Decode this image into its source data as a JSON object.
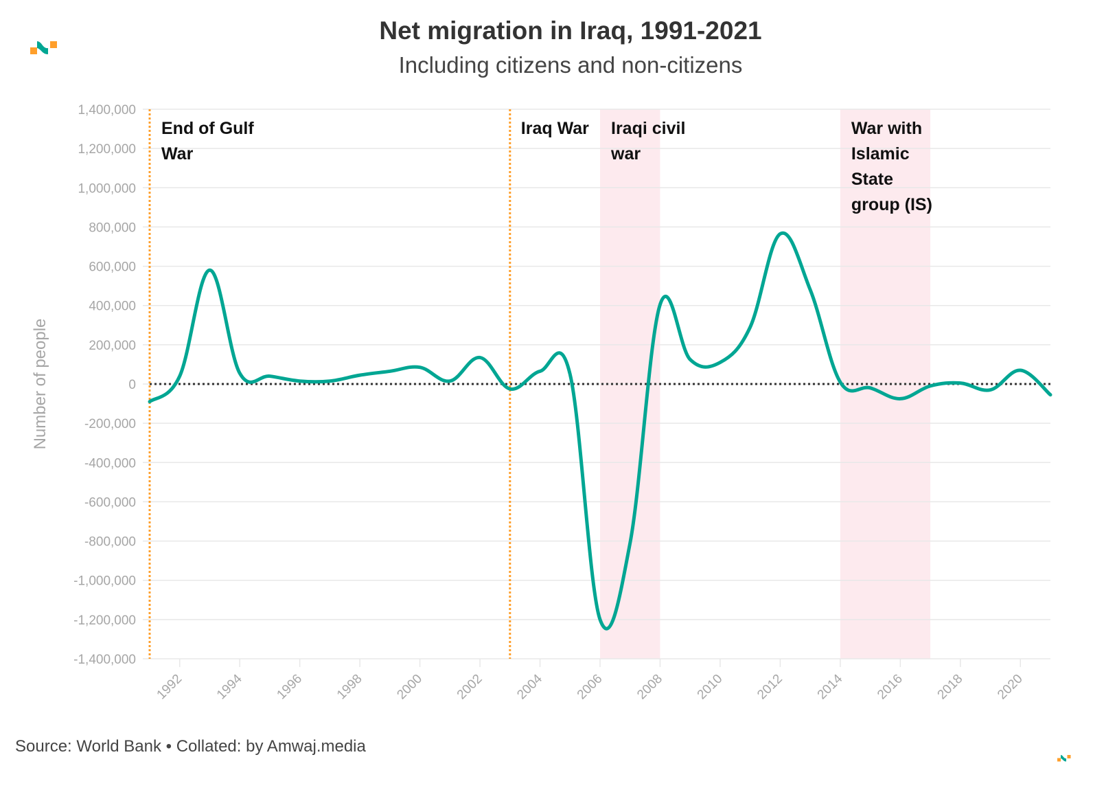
{
  "header": {
    "title": "Net migration in Iraq, 1991-2021",
    "subtitle": "Including citizens and non-citizens"
  },
  "footer": {
    "source": "Source: World Bank • Collated: by Amwaj.media"
  },
  "logo": {
    "name": "amwaj-logo-icon",
    "colors": {
      "teal": "#00a693",
      "orange": "#ff9f2b"
    }
  },
  "colors": {
    "line": "#00a693",
    "event_line": "#ff9f2b",
    "shade": "#fdeaee",
    "zero_line": "#333333",
    "grid": "#e8e8e8"
  },
  "chart_data": {
    "type": "line",
    "title": "Net migration in Iraq, 1991-2021",
    "subtitle": "Including citizens and non-citizens",
    "xlabel": "",
    "ylabel": "Number of people",
    "xlim": [
      1991,
      2021
    ],
    "ylim": [
      -1400000,
      1400000
    ],
    "grid": true,
    "x_ticks": [
      1992,
      1994,
      1996,
      1998,
      2000,
      2002,
      2004,
      2006,
      2008,
      2010,
      2012,
      2014,
      2016,
      2018,
      2020
    ],
    "y_ticks": [
      1400000,
      1200000,
      1000000,
      800000,
      600000,
      400000,
      200000,
      0,
      -200000,
      -400000,
      -600000,
      -800000,
      -1000000,
      -1200000,
      -1400000
    ],
    "y_tick_labels": [
      "1,400,000",
      "1,200,000",
      "1,000,000",
      "800,000",
      "600,000",
      "400,000",
      "200,000",
      "0",
      "-200,000",
      "-400,000",
      "-600,000",
      "-800,000",
      "-1,000,000",
      "-1,200,000",
      "-1,400,000"
    ],
    "x": [
      1991,
      1992,
      1993,
      1994,
      1995,
      1996,
      1997,
      1998,
      1999,
      2000,
      2001,
      2002,
      2003,
      2004,
      2005,
      2006,
      2007,
      2008,
      2009,
      2010,
      2011,
      2012,
      2013,
      2014,
      2015,
      2016,
      2017,
      2018,
      2019,
      2020,
      2021
    ],
    "series": [
      {
        "name": "Net migration",
        "values": [
          -90000,
          40000,
          580000,
          55000,
          40000,
          15000,
          15000,
          45000,
          65000,
          85000,
          15000,
          135000,
          -25000,
          65000,
          50000,
          -1200000,
          -810000,
          405000,
          125000,
          110000,
          290000,
          765000,
          480000,
          10000,
          -20000,
          -75000,
          -10000,
          5000,
          -30000,
          70000,
          -55000
        ]
      }
    ],
    "reference_line": {
      "y": 0,
      "style": "dotted"
    },
    "event_lines": [
      {
        "x": 1991,
        "label": [
          "End of Gulf",
          "War"
        ]
      },
      {
        "x": 2003,
        "label": [
          "Iraq War"
        ]
      }
    ],
    "shaded_periods": [
      {
        "start": 2006,
        "end": 2008,
        "label": [
          "Iraqi civil",
          "war"
        ]
      },
      {
        "start": 2014,
        "end": 2017,
        "label": [
          "War with",
          "Islamic",
          "State",
          "group (IS)"
        ]
      }
    ]
  }
}
